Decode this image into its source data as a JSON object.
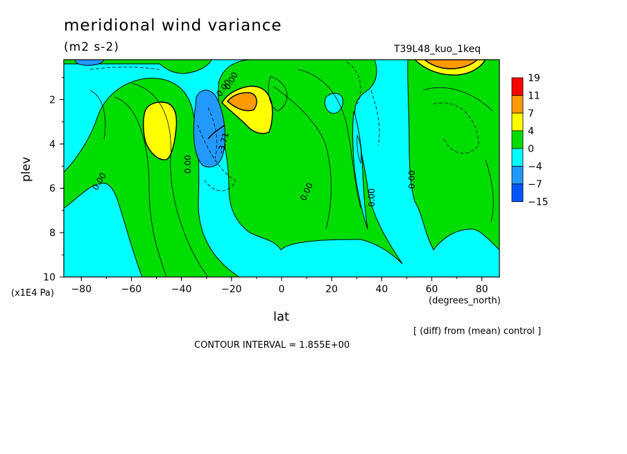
{
  "chart_data": {
    "type": "heatmap",
    "title": "meridional wind variance",
    "subtitle": "(m2 s-2)",
    "run_label": "T39L48_kuo_1keq",
    "xlabel": "lat",
    "x_unit": "(degrees_north)",
    "ylabel": "plev",
    "y_unit": "(x1E4 Pa)",
    "xlim": [
      -87,
      87
    ],
    "ylim": [
      10,
      0.2
    ],
    "x_ticks": [
      -80,
      -60,
      -40,
      -20,
      0,
      20,
      40,
      60,
      80
    ],
    "y_ticks": [
      2,
      4,
      6,
      8,
      10
    ],
    "colorbar": {
      "levels": [
        "19",
        "11",
        "7",
        "4",
        "0",
        "-4",
        "-7",
        "-15"
      ],
      "colors": [
        "#ff0000",
        "#ff9900",
        "#ffff00",
        "#00dd00",
        "#00ffff",
        "#2299ff",
        "#0055ff"
      ]
    },
    "contour_labels": [
      "0.00",
      "0.00",
      "0.00",
      "0.00",
      "0.00",
      "0.00",
      "0.00",
      "-3.71"
    ],
    "diff_note": "[ (diff) from (mean) control ]",
    "contour_interval": "CONTOUR INTERVAL = 1.855E+00"
  }
}
